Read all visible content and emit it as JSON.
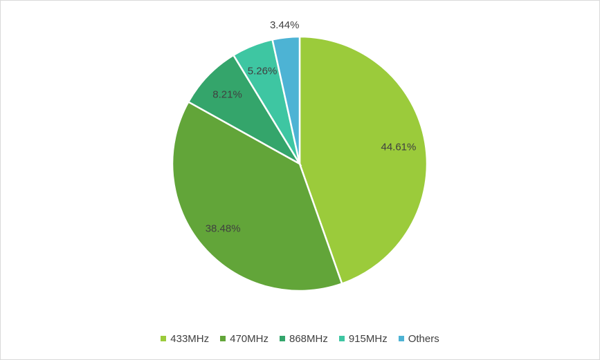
{
  "chart_data": {
    "type": "pie",
    "title": "",
    "start_angle_deg": 0,
    "direction": "clockwise",
    "legend_position": "bottom",
    "slices": [
      {
        "name": "433MHz",
        "value": 44.61,
        "label": "44.61%",
        "color": "#9bcb3b"
      },
      {
        "name": "470MHz",
        "value": 38.48,
        "label": "38.48%",
        "color": "#62a539"
      },
      {
        "name": "868MHz",
        "value": 8.21,
        "label": "8.21%",
        "color": "#34a56b"
      },
      {
        "name": "915MHz",
        "value": 5.26,
        "label": "5.26%",
        "color": "#3ec6a2"
      },
      {
        "name": "Others",
        "value": 3.44,
        "label": "3.44%",
        "color": "#4db3d4"
      }
    ]
  }
}
